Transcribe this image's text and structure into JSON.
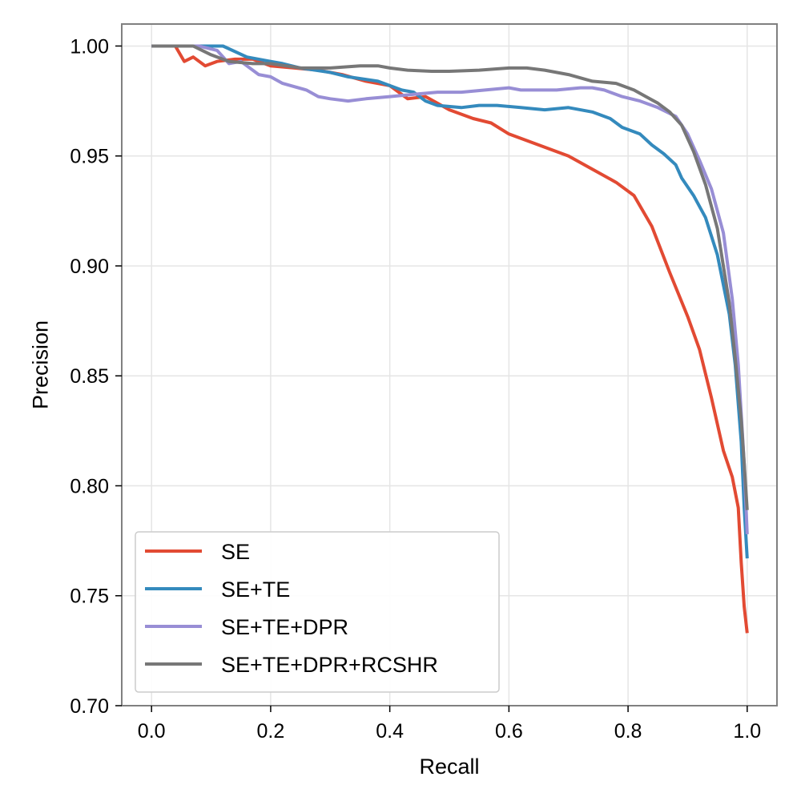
{
  "chart_data": {
    "type": "line",
    "title": "",
    "xlabel": "Recall",
    "ylabel": "Precision",
    "xlim": [
      -0.05,
      1.05
    ],
    "ylim": [
      0.7,
      1.01
    ],
    "xticks": [
      0.0,
      0.2,
      0.4,
      0.6,
      0.8,
      1.0
    ],
    "xtick_labels": [
      "0.0",
      "0.2",
      "0.4",
      "0.6",
      "0.8",
      "1.0"
    ],
    "yticks": [
      0.7,
      0.75,
      0.8,
      0.85,
      0.9,
      0.95,
      1.0
    ],
    "ytick_labels": [
      "0.70",
      "0.75",
      "0.80",
      "0.85",
      "0.90",
      "0.95",
      "1.00"
    ],
    "grid": true,
    "legend_position": "lower-left",
    "series": [
      {
        "name": "SE",
        "color": "#E24A33",
        "x": [
          0.0,
          0.04,
          0.055,
          0.07,
          0.09,
          0.11,
          0.14,
          0.17,
          0.2,
          0.24,
          0.28,
          0.32,
          0.36,
          0.4,
          0.43,
          0.46,
          0.5,
          0.54,
          0.57,
          0.6,
          0.63,
          0.66,
          0.7,
          0.74,
          0.78,
          0.81,
          0.84,
          0.87,
          0.9,
          0.92,
          0.94,
          0.96,
          0.975,
          0.985,
          0.99,
          0.995,
          1.0
        ],
        "y": [
          1.0,
          1.0,
          0.993,
          0.995,
          0.991,
          0.993,
          0.994,
          0.994,
          0.991,
          0.99,
          0.989,
          0.987,
          0.984,
          0.982,
          0.976,
          0.977,
          0.971,
          0.967,
          0.965,
          0.96,
          0.957,
          0.954,
          0.95,
          0.944,
          0.938,
          0.932,
          0.918,
          0.897,
          0.877,
          0.862,
          0.84,
          0.816,
          0.804,
          0.79,
          0.765,
          0.745,
          0.733
        ]
      },
      {
        "name": "SE+TE",
        "color": "#348ABD",
        "x": [
          0.0,
          0.08,
          0.12,
          0.16,
          0.2,
          0.22,
          0.25,
          0.3,
          0.33,
          0.38,
          0.42,
          0.44,
          0.46,
          0.48,
          0.52,
          0.55,
          0.58,
          0.62,
          0.66,
          0.7,
          0.74,
          0.77,
          0.79,
          0.82,
          0.84,
          0.86,
          0.88,
          0.89,
          0.91,
          0.93,
          0.95,
          0.97,
          0.98,
          0.99,
          0.995,
          1.0
        ],
        "y": [
          1.0,
          1.0,
          1.0,
          0.995,
          0.993,
          0.992,
          0.99,
          0.988,
          0.986,
          0.984,
          0.98,
          0.979,
          0.975,
          0.973,
          0.972,
          0.973,
          0.973,
          0.972,
          0.971,
          0.972,
          0.97,
          0.967,
          0.963,
          0.96,
          0.955,
          0.951,
          0.946,
          0.94,
          0.932,
          0.922,
          0.905,
          0.878,
          0.855,
          0.82,
          0.79,
          0.767
        ]
      },
      {
        "name": "SE+TE+DPR",
        "color": "#988ED5",
        "x": [
          0.0,
          0.08,
          0.11,
          0.13,
          0.15,
          0.18,
          0.2,
          0.22,
          0.26,
          0.28,
          0.3,
          0.33,
          0.36,
          0.4,
          0.44,
          0.48,
          0.52,
          0.56,
          0.6,
          0.62,
          0.64,
          0.68,
          0.72,
          0.74,
          0.76,
          0.79,
          0.82,
          0.85,
          0.88,
          0.9,
          0.92,
          0.94,
          0.96,
          0.975,
          0.985,
          0.995,
          1.0
        ],
        "y": [
          1.0,
          1.0,
          0.998,
          0.992,
          0.993,
          0.987,
          0.986,
          0.983,
          0.98,
          0.977,
          0.976,
          0.975,
          0.976,
          0.977,
          0.978,
          0.979,
          0.979,
          0.98,
          0.981,
          0.98,
          0.98,
          0.98,
          0.981,
          0.981,
          0.98,
          0.977,
          0.975,
          0.972,
          0.968,
          0.96,
          0.948,
          0.935,
          0.915,
          0.885,
          0.855,
          0.81,
          0.778
        ]
      },
      {
        "name": "SE+TE+DPR+RCSHR",
        "color": "#777777",
        "x": [
          0.0,
          0.07,
          0.1,
          0.13,
          0.17,
          0.2,
          0.25,
          0.3,
          0.35,
          0.38,
          0.4,
          0.43,
          0.47,
          0.5,
          0.55,
          0.6,
          0.63,
          0.66,
          0.7,
          0.74,
          0.78,
          0.81,
          0.83,
          0.85,
          0.87,
          0.89,
          0.91,
          0.93,
          0.95,
          0.97,
          0.98,
          0.99,
          0.995,
          1.0
        ],
        "y": [
          1.0,
          1.0,
          0.996,
          0.993,
          0.992,
          0.992,
          0.99,
          0.99,
          0.991,
          0.991,
          0.99,
          0.989,
          0.9885,
          0.9885,
          0.989,
          0.99,
          0.99,
          0.989,
          0.987,
          0.984,
          0.983,
          0.98,
          0.977,
          0.974,
          0.97,
          0.964,
          0.952,
          0.937,
          0.917,
          0.883,
          0.858,
          0.83,
          0.81,
          0.789
        ]
      }
    ]
  }
}
